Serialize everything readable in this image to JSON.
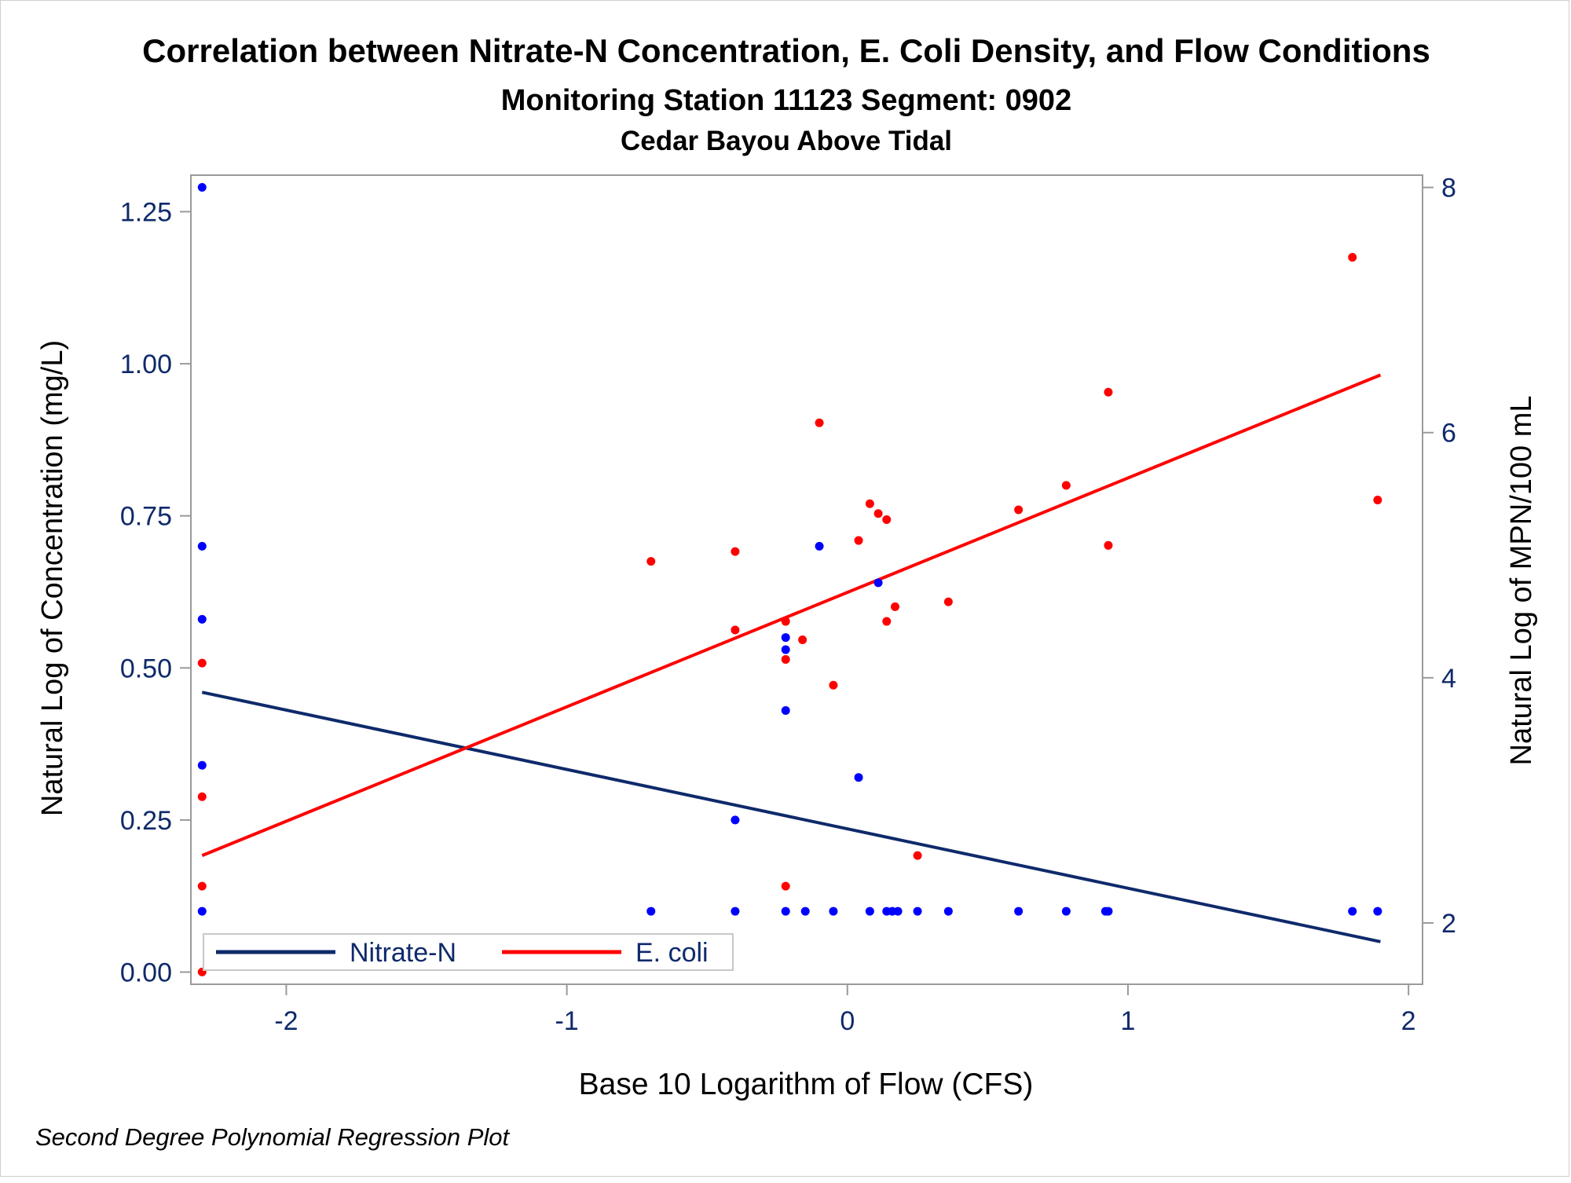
{
  "colors": {
    "title_text": "#0f2a6b",
    "frame": "#9a9a9a",
    "nitrate": "#0f2a6b",
    "ecoli": "#ff0000",
    "nitrate_points": "#0000ff",
    "ecoli_points": "#ff0000"
  },
  "chart_data": {
    "type": "scatter",
    "title": "Correlation between Nitrate-N Concentration, E. Coli Density, and Flow Conditions",
    "subtitle": "Monitoring Station 11123 Segment: 0902",
    "subtitle2": "Cedar Bayou Above Tidal",
    "footnote": "Second Degree Polynomial Regression Plot",
    "xlabel": "Base 10 Logarithm of Flow (CFS)",
    "ylabel_left": "Natural Log of Concentration (mg/L)",
    "ylabel_right": "Natural Log of MPN/100 mL",
    "xlim": [
      -2.34,
      2.05
    ],
    "ylim_left": [
      -0.02,
      1.31
    ],
    "ylim_right": [
      1.5,
      8.1
    ],
    "x_ticks": [
      -2,
      -1,
      0,
      1,
      2
    ],
    "x_tick_labels": [
      "-2",
      "-1",
      "0",
      "1",
      "2"
    ],
    "y_left_ticks": [
      0.0,
      0.25,
      0.5,
      0.75,
      1.0,
      1.25
    ],
    "y_left_tick_labels": [
      "0.00",
      "0.25",
      "0.50",
      "0.75",
      "1.00",
      "1.25"
    ],
    "y_right_ticks": [
      2,
      4,
      6,
      8
    ],
    "y_right_tick_labels": [
      "2",
      "4",
      "6",
      "8"
    ],
    "grid": false,
    "legend_position": "bottom-left",
    "legend": [
      "Nitrate-N",
      "E. coli"
    ],
    "series": [
      {
        "name": "Nitrate-N",
        "axis": "left",
        "points": [
          [
            -2.3,
            1.29
          ],
          [
            -2.3,
            0.7
          ],
          [
            -2.3,
            0.58
          ],
          [
            -2.3,
            0.34
          ],
          [
            -2.3,
            0.1
          ],
          [
            -0.7,
            0.1
          ],
          [
            -0.4,
            0.25
          ],
          [
            -0.4,
            0.1
          ],
          [
            -0.22,
            0.55
          ],
          [
            -0.22,
            0.53
          ],
          [
            -0.22,
            0.43
          ],
          [
            -0.22,
            0.1
          ],
          [
            -0.15,
            0.1
          ],
          [
            -0.1,
            0.7
          ],
          [
            -0.05,
            0.1
          ],
          [
            0.04,
            0.32
          ],
          [
            0.08,
            0.1
          ],
          [
            0.11,
            0.64
          ],
          [
            0.14,
            0.1
          ],
          [
            0.16,
            0.1
          ],
          [
            0.18,
            0.1
          ],
          [
            0.25,
            0.1
          ],
          [
            0.36,
            0.1
          ],
          [
            0.61,
            0.1
          ],
          [
            0.78,
            0.1
          ],
          [
            0.92,
            0.1
          ],
          [
            0.93,
            0.1
          ],
          [
            1.8,
            0.1
          ],
          [
            1.89,
            0.1
          ]
        ],
        "regression": [
          [
            -2.3,
            0.46
          ],
          [
            1.9,
            0.05
          ]
        ]
      },
      {
        "name": "E. coli",
        "axis": "right",
        "points": [
          [
            -2.3,
            4.12
          ],
          [
            -2.3,
            3.03
          ],
          [
            -2.3,
            2.3
          ],
          [
            -2.3,
            1.6
          ],
          [
            -0.7,
            4.95
          ],
          [
            -0.4,
            5.03
          ],
          [
            -0.4,
            4.39
          ],
          [
            -0.22,
            4.46
          ],
          [
            -0.22,
            4.15
          ],
          [
            -0.22,
            2.3
          ],
          [
            -0.16,
            4.31
          ],
          [
            -0.1,
            6.08
          ],
          [
            -0.05,
            3.94
          ],
          [
            0.04,
            5.12
          ],
          [
            0.08,
            5.42
          ],
          [
            0.11,
            5.34
          ],
          [
            0.14,
            5.29
          ],
          [
            0.14,
            4.46
          ],
          [
            0.17,
            4.58
          ],
          [
            0.25,
            2.55
          ],
          [
            0.36,
            4.62
          ],
          [
            0.61,
            5.37
          ],
          [
            0.78,
            5.57
          ],
          [
            0.93,
            6.33
          ],
          [
            0.93,
            5.08
          ],
          [
            1.8,
            7.43
          ],
          [
            1.89,
            5.45
          ]
        ],
        "regression": [
          [
            -2.3,
            2.55
          ],
          [
            1.9,
            6.47
          ]
        ]
      }
    ]
  }
}
